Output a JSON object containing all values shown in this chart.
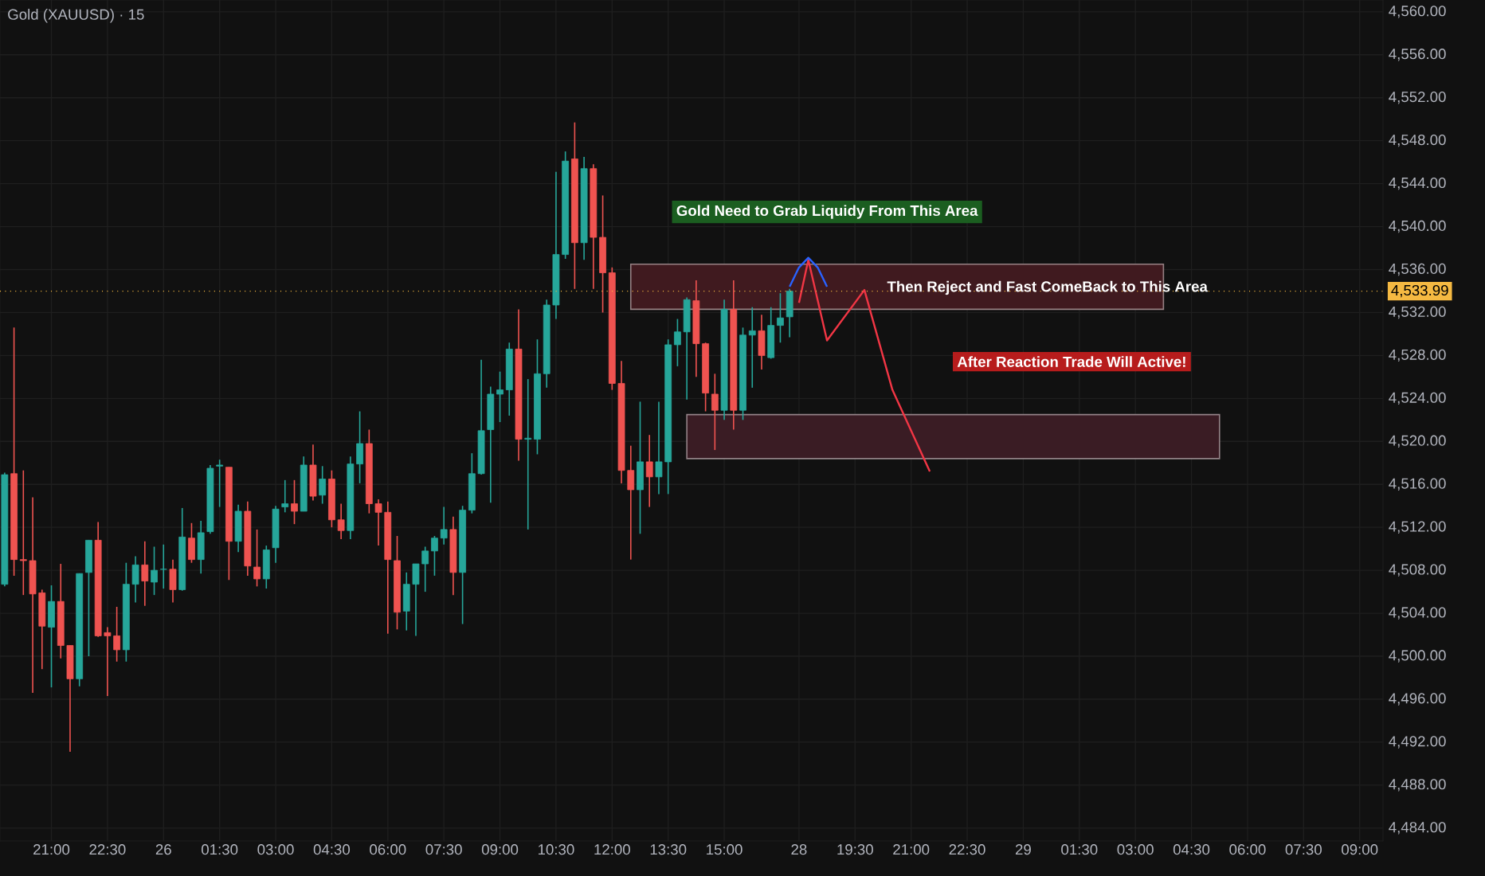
{
  "chart_data": {
    "type": "candlestick",
    "title": "Gold (XAUUSD) · 15",
    "categories": [
      null,
      null,
      null,
      null,
      null,
      "21:00",
      null,
      null,
      null,
      null,
      null,
      "22:30",
      null,
      null,
      null,
      null,
      null,
      "26",
      null,
      null,
      null,
      null,
      null,
      "01:30",
      null,
      null,
      null,
      null,
      null,
      "03:00",
      null,
      null,
      null,
      null,
      null,
      "04:30",
      null,
      null,
      null,
      null,
      null,
      "06:00",
      null,
      null,
      null,
      null,
      null,
      "07:30",
      null,
      null,
      null,
      null,
      null,
      "09:00",
      null,
      null,
      null,
      null,
      null,
      "10:30",
      null,
      null,
      null,
      null,
      null,
      "12:00",
      null,
      null,
      null,
      null,
      null,
      "13:30",
      null,
      null,
      null,
      null,
      null,
      "15:00",
      null,
      null,
      null,
      null,
      null,
      null,
      null,
      "28",
      null,
      null,
      null,
      null,
      null,
      "19:30",
      null,
      null,
      null,
      null,
      null,
      "21:00",
      null,
      null,
      null,
      null,
      null,
      "22:30",
      null,
      null,
      null,
      null,
      null,
      "29",
      null,
      null,
      null,
      null,
      null,
      "01:30",
      null,
      null,
      null,
      null,
      null,
      "03:00",
      null,
      null,
      null,
      null,
      null,
      "04:30",
      null,
      null,
      null,
      null,
      null,
      "06:00",
      null,
      null,
      null,
      null,
      null,
      "07:30",
      null,
      null,
      null,
      null,
      null,
      "09:00",
      null,
      null
    ],
    "ohlc": [
      [
        4506.7,
        4517.1,
        4506.5,
        4516.9
      ],
      [
        4517.0,
        4530.6,
        4507.5,
        4509.0
      ],
      [
        4509.0,
        4517.3,
        4505.7,
        4508.9
      ],
      [
        4508.9,
        4514.8,
        4496.6,
        4505.8
      ],
      [
        4505.9,
        4506.2,
        4498.8,
        4502.8
      ],
      [
        4502.7,
        4506.6,
        4497.1,
        4505.1
      ],
      [
        4505.1,
        4508.6,
        4499.8,
        4501.0
      ],
      [
        4501.0,
        4501.0,
        4491.1,
        4497.9
      ],
      [
        4497.9,
        4507.7,
        4497.2,
        4507.7
      ],
      [
        4507.8,
        4510.8,
        4500.0,
        4510.8
      ],
      [
        4510.8,
        4512.5,
        4501.8,
        4501.9
      ],
      [
        4502.2,
        4502.7,
        4496.3,
        4501.9
      ],
      [
        4501.9,
        4504.6,
        4499.5,
        4500.6
      ],
      [
        4500.6,
        4508.7,
        4499.5,
        4506.7
      ],
      [
        4506.7,
        4509.3,
        4505.0,
        4508.5
      ],
      [
        4508.5,
        4510.7,
        4504.7,
        4507.0
      ],
      [
        4506.9,
        4510.2,
        4505.7,
        4508.0
      ],
      [
        4508.1,
        4510.4,
        4506.3,
        4508.1
      ],
      [
        4508.1,
        4509.0,
        4505.0,
        4506.2
      ],
      [
        4506.2,
        4513.8,
        4506.1,
        4511.1
      ],
      [
        4511.0,
        4512.4,
        4508.7,
        4509.0
      ],
      [
        4509.0,
        4512.6,
        4507.7,
        4511.5
      ],
      [
        4511.6,
        4517.8,
        4511.4,
        4517.5
      ],
      [
        4517.7,
        4518.3,
        4513.9,
        4517.8
      ],
      [
        4517.6,
        4517.6,
        4507.1,
        4510.7
      ],
      [
        4510.7,
        4514.1,
        4509.7,
        4513.5
      ],
      [
        4513.5,
        4514.4,
        4507.5,
        4508.4
      ],
      [
        4508.3,
        4511.8,
        4506.5,
        4507.2
      ],
      [
        4507.2,
        4510.3,
        4506.3,
        4509.9
      ],
      [
        4510.1,
        4514.0,
        4508.7,
        4513.7
      ],
      [
        4513.9,
        4516.4,
        4513.4,
        4514.2
      ],
      [
        4514.2,
        4516.4,
        4512.3,
        4513.5
      ],
      [
        4513.5,
        4518.6,
        4513.5,
        4517.8
      ],
      [
        4517.8,
        4519.7,
        4514.5,
        4514.9
      ],
      [
        4515.0,
        4517.7,
        4514.2,
        4516.5
      ],
      [
        4516.5,
        4517.3,
        4512.0,
        4512.7
      ],
      [
        4512.7,
        4514.2,
        4510.9,
        4511.7
      ],
      [
        4511.7,
        4518.6,
        4510.9,
        4517.9
      ],
      [
        4517.9,
        4522.8,
        4516.1,
        4519.8
      ],
      [
        4519.8,
        4521.1,
        4513.3,
        4514.2
      ],
      [
        4514.2,
        4514.6,
        4510.3,
        4513.4
      ],
      [
        4513.4,
        4514.4,
        4502.1,
        4509.0
      ],
      [
        4508.9,
        4511.2,
        4502.5,
        4504.1
      ],
      [
        4504.2,
        4507.8,
        4502.4,
        4506.7
      ],
      [
        4506.7,
        4508.6,
        4501.9,
        4508.6
      ],
      [
        4508.6,
        4510.2,
        4506.0,
        4509.8
      ],
      [
        4509.8,
        4511.2,
        4507.5,
        4511.0
      ],
      [
        4511.0,
        4513.9,
        4510.4,
        4511.8
      ],
      [
        4511.8,
        4513.0,
        4505.7,
        4507.8
      ],
      [
        4507.8,
        4514.0,
        4503.0,
        4513.6
      ],
      [
        4513.6,
        4518.9,
        4513.3,
        4517.0
      ],
      [
        4517.0,
        4527.6,
        4516.9,
        4521.0
      ],
      [
        4521.1,
        4525.1,
        4514.3,
        4524.4
      ],
      [
        4524.4,
        4526.5,
        4521.8,
        4524.8
      ],
      [
        4524.8,
        4529.2,
        4522.4,
        4528.6
      ],
      [
        4528.6,
        4532.3,
        4518.2,
        4520.2
      ],
      [
        4520.2,
        4525.8,
        4511.8,
        4520.3
      ],
      [
        4520.2,
        4529.5,
        4518.8,
        4526.3
      ],
      [
        4526.3,
        4533.2,
        4525.0,
        4532.7
      ],
      [
        4532.7,
        4545.1,
        4531.4,
        4537.4
      ],
      [
        4537.4,
        4547.0,
        4537.0,
        4546.1
      ],
      [
        4546.3,
        4549.7,
        4534.2,
        4538.5
      ],
      [
        4538.5,
        4546.5,
        4536.9,
        4545.4
      ],
      [
        4545.4,
        4545.8,
        4534.2,
        4539.0
      ],
      [
        4539.0,
        4542.9,
        4532.0,
        4535.7
      ],
      [
        4535.7,
        4536.2,
        4524.8,
        4525.4
      ],
      [
        4525.4,
        4527.5,
        4516.1,
        4517.3
      ],
      [
        4517.3,
        4519.6,
        4509.0,
        4515.5
      ],
      [
        4515.5,
        4523.7,
        4511.4,
        4518.1
      ],
      [
        4518.1,
        4520.6,
        4513.9,
        4516.7
      ],
      [
        4516.7,
        4523.7,
        4515.1,
        4518.1
      ],
      [
        4518.1,
        4529.5,
        4515.1,
        4529.0
      ],
      [
        4529.0,
        4531.4,
        4527.0,
        4530.2
      ],
      [
        4530.2,
        4533.4,
        4523.9,
        4533.2
      ],
      [
        4533.1,
        4535.0,
        4526.0,
        4529.1
      ],
      [
        4529.1,
        4529.2,
        4522.8,
        4524.5
      ],
      [
        4524.4,
        4526.3,
        4519.2,
        4522.9
      ],
      [
        4522.9,
        4533.2,
        4522.0,
        4532.3
      ],
      [
        4532.3,
        4535.0,
        4521.1,
        4522.9
      ],
      [
        4522.9,
        4530.6,
        4522.0,
        4529.9
      ],
      [
        4529.9,
        4532.5,
        4525.0,
        4530.3
      ],
      [
        4530.3,
        4531.8,
        4526.7,
        4528.0
      ],
      [
        4527.8,
        4532.5,
        4527.7,
        4530.8
      ],
      [
        4530.8,
        4533.8,
        4529.2,
        4531.5
      ],
      [
        4531.6,
        4534.2,
        4529.7,
        4533.99
      ],
      null,
      null,
      null,
      null,
      null,
      null,
      null,
      null,
      null,
      null,
      null,
      null,
      null,
      null,
      null,
      null,
      null,
      null,
      null,
      null,
      null,
      null,
      null,
      null,
      null,
      null,
      null,
      null,
      null,
      null,
      null,
      null,
      null,
      null,
      null,
      null,
      null,
      null,
      null,
      null,
      null,
      null,
      null,
      null,
      null,
      null,
      null,
      null,
      null,
      null,
      null,
      null,
      null,
      null,
      null,
      null,
      null,
      null,
      null,
      null,
      null,
      null,
      null
    ],
    "series": [
      {
        "type": "area",
        "color": "#401a1f",
        "values": [
          null,
          null,
          null,
          null,
          null,
          null,
          null,
          null,
          null,
          null,
          null,
          null,
          null,
          null,
          null,
          null,
          null,
          null,
          null,
          null,
          null,
          null,
          null,
          null,
          null,
          null,
          null,
          null,
          null,
          null,
          null,
          null,
          null,
          null,
          null,
          null,
          null,
          null,
          null,
          null,
          null,
          null,
          null,
          null,
          null,
          null,
          null,
          null,
          null,
          null,
          null,
          null,
          null,
          null,
          null,
          null,
          null,
          null,
          null,
          null,
          null,
          null,
          null,
          null,
          null,
          null,
          null,
          null,
          null,
          null,
          null,
          null,
          null,
          null,
          null,
          null,
          null,
          null,
          null,
          null,
          null,
          null,
          null,
          null,
          null,
          null,
          null,
          null,
          null,
          null,
          null,
          null,
          null,
          null,
          null,
          null,
          null,
          null,
          null,
          null,
          null,
          null,
          null,
          null,
          null,
          null,
          null,
          null,
          null,
          null,
          null,
          null,
          null,
          null,
          null,
          null,
          null,
          null,
          null,
          null,
          null,
          null,
          null,
          null,
          null,
          null,
          null,
          null,
          null,
          null,
          null,
          null,
          null,
          null,
          null,
          null,
          null,
          null,
          null,
          null,
          null,
          null,
          null,
          null,
          null,
          null,
          null,
          null
        ],
        "upper": [
          null,
          null,
          null,
          null,
          null,
          null,
          null,
          null,
          null,
          null,
          null,
          null,
          null,
          null,
          null,
          null,
          null,
          null,
          null,
          null,
          null,
          null,
          null,
          null,
          null,
          null,
          null,
          null,
          null,
          null,
          null,
          null,
          null,
          null,
          null,
          null,
          null,
          null,
          null,
          null,
          null,
          null,
          null,
          null,
          null,
          null,
          null,
          null,
          null,
          null,
          null,
          null,
          null,
          null,
          null,
          null,
          null,
          null,
          null,
          null,
          null,
          null,
          null,
          null,
          null,
          null,
          null,
          4536.5,
          4536.5,
          4536.5,
          4536.5,
          4536.5,
          4536.5,
          4536.5,
          4536.5,
          4536.5,
          4536.5,
          4536.5,
          4536.5,
          4536.5,
          4536.5,
          4536.5,
          4536.5,
          4536.5,
          4536.5,
          4536.5,
          4536.5,
          4536.5,
          4536.5,
          4536.5,
          4536.5,
          4536.5,
          4536.5,
          4536.5,
          4536.5,
          4536.5,
          4536.5,
          4536.5,
          4536.5,
          4536.5,
          4536.5,
          4536.5,
          4536.5,
          4536.5,
          4536.5,
          4536.5,
          4536.5,
          4536.5,
          4536.5,
          4536.5,
          4536.5,
          4536.5,
          4536.5,
          4536.5,
          4536.5,
          4536.5,
          4536.5,
          4536.5,
          4536.5,
          4536.5,
          4536.5,
          4536.5,
          4536.5,
          4536.5,
          4536.5,
          null,
          null,
          null,
          null,
          null,
          null,
          null,
          null,
          null,
          null,
          null,
          null,
          null,
          null,
          null,
          null,
          null,
          null,
          null,
          null,
          null,
          null,
          null
        ],
        "lower": [
          null,
          null,
          null,
          null,
          null,
          null,
          null,
          null,
          null,
          null,
          null,
          null,
          null,
          null,
          null,
          null,
          null,
          null,
          null,
          null,
          null,
          null,
          null,
          null,
          null,
          null,
          null,
          null,
          null,
          null,
          null,
          null,
          null,
          null,
          null,
          null,
          null,
          null,
          null,
          null,
          null,
          null,
          null,
          null,
          null,
          null,
          null,
          null,
          null,
          null,
          null,
          null,
          null,
          null,
          null,
          null,
          null,
          null,
          null,
          null,
          null,
          null,
          null,
          null,
          null,
          null,
          null,
          4532.3,
          4532.3,
          4532.3,
          4532.3,
          4532.3,
          4532.3,
          4532.3,
          4532.3,
          4532.3,
          4532.3,
          4532.3,
          4532.3,
          4532.3,
          4532.3,
          4532.3,
          4532.3,
          4532.3,
          4532.3,
          4532.3,
          4532.3,
          4532.3,
          4532.3,
          4532.3,
          4532.3,
          4532.3,
          4532.3,
          4532.3,
          4532.3,
          4532.3,
          4532.3,
          4532.3,
          4532.3,
          4532.3,
          4532.3,
          4532.3,
          4532.3,
          4532.3,
          4532.3,
          4532.3,
          4532.3,
          4532.3,
          4532.3,
          4532.3,
          4532.3,
          4532.3,
          4532.3,
          4532.3,
          4532.3,
          4532.3,
          4532.3,
          4532.3,
          4532.3,
          4532.3,
          4532.3,
          4532.3,
          4532.3,
          4532.3,
          4532.3,
          null,
          null,
          null,
          null,
          null,
          null,
          null,
          null,
          null,
          null,
          null,
          null,
          null,
          null,
          null,
          null,
          null,
          null,
          null,
          null,
          null,
          null,
          null
        ]
      },
      {
        "type": "area",
        "color": "#3a1c24",
        "values": [
          null,
          null,
          null,
          null,
          null,
          null,
          null,
          null,
          null,
          null,
          null,
          null,
          null,
          null,
          null,
          null,
          null,
          null,
          null,
          null,
          null,
          null,
          null,
          null,
          null,
          null,
          null,
          null,
          null,
          null,
          null,
          null,
          null,
          null,
          null,
          null,
          null,
          null,
          null,
          null,
          null,
          null,
          null,
          null,
          null,
          null,
          null,
          null,
          null,
          null,
          null,
          null,
          null,
          null,
          null,
          null,
          null,
          null,
          null,
          null,
          null,
          null,
          null,
          null,
          null,
          null,
          null,
          null,
          null,
          null,
          null,
          null,
          null,
          null,
          null,
          null,
          null,
          null,
          null,
          null,
          null,
          null,
          null,
          null,
          null,
          null,
          null,
          null,
          null,
          null,
          null,
          null,
          null,
          null,
          null,
          null,
          null,
          null,
          null,
          null,
          null,
          null,
          null,
          null,
          null,
          null,
          null,
          null,
          null,
          null,
          null,
          null,
          null,
          null,
          null,
          null,
          null,
          null,
          null,
          null,
          null,
          null,
          null,
          null,
          null,
          null,
          null,
          null,
          null,
          null,
          null,
          null,
          null,
          null,
          null,
          null,
          null,
          null,
          null,
          null,
          null,
          null,
          null,
          null,
          null,
          null,
          null,
          null
        ],
        "upper": [
          null,
          null,
          null,
          null,
          null,
          null,
          null,
          null,
          null,
          null,
          null,
          null,
          null,
          null,
          null,
          null,
          null,
          null,
          null,
          null,
          null,
          null,
          null,
          null,
          null,
          null,
          null,
          null,
          null,
          null,
          null,
          null,
          null,
          null,
          null,
          null,
          null,
          null,
          null,
          null,
          null,
          null,
          null,
          null,
          null,
          null,
          null,
          null,
          null,
          null,
          null,
          null,
          null,
          null,
          null,
          null,
          null,
          null,
          null,
          null,
          null,
          null,
          null,
          null,
          null,
          null,
          null,
          null,
          null,
          null,
          null,
          null,
          null,
          4522.5,
          4522.5,
          4522.5,
          4522.5,
          4522.5,
          4522.5,
          4522.5,
          4522.5,
          4522.5,
          4522.5,
          4522.5,
          4522.5,
          4522.5,
          4522.5,
          4522.5,
          4522.5,
          4522.5,
          4522.5,
          4522.5,
          4522.5,
          4522.5,
          4522.5,
          4522.5,
          4522.5,
          4522.5,
          4522.5,
          4522.5,
          4522.5,
          4522.5,
          4522.5,
          4522.5,
          4522.5,
          4522.5,
          4522.5,
          4522.5,
          4522.5,
          4522.5,
          4522.5,
          4522.5,
          4522.5,
          4522.5,
          4522.5,
          4522.5,
          4522.5,
          4522.5,
          4522.5,
          4522.5,
          4522.5,
          4522.5,
          4522.5,
          4522.5,
          4522.5,
          4522.5,
          4522.5,
          4522.5,
          4522.5,
          4522.5,
          4522.5,
          null,
          null,
          null,
          null,
          null,
          null,
          null,
          null,
          null,
          null,
          null,
          null,
          null,
          null,
          null,
          null,
          null
        ],
        "lower": [
          null,
          null,
          null,
          null,
          null,
          null,
          null,
          null,
          null,
          null,
          null,
          null,
          null,
          null,
          null,
          null,
          null,
          null,
          null,
          null,
          null,
          null,
          null,
          null,
          null,
          null,
          null,
          null,
          null,
          null,
          null,
          null,
          null,
          null,
          null,
          null,
          null,
          null,
          null,
          null,
          null,
          null,
          null,
          null,
          null,
          null,
          null,
          null,
          null,
          null,
          null,
          null,
          null,
          null,
          null,
          null,
          null,
          null,
          null,
          null,
          null,
          null,
          null,
          null,
          null,
          null,
          null,
          null,
          null,
          null,
          null,
          null,
          null,
          4518.4,
          4518.4,
          4518.4,
          4518.4,
          4518.4,
          4518.4,
          4518.4,
          4518.4,
          4518.4,
          4518.4,
          4518.4,
          4518.4,
          4518.4,
          4518.4,
          4518.4,
          4518.4,
          4518.4,
          4518.4,
          4518.4,
          4518.4,
          4518.4,
          4518.4,
          4518.4,
          4518.4,
          4518.4,
          4518.4,
          4518.4,
          4518.4,
          4518.4,
          4518.4,
          4518.4,
          4518.4,
          4518.4,
          4518.4,
          4518.4,
          4518.4,
          4518.4,
          4518.4,
          4518.4,
          4518.4,
          4518.4,
          4518.4,
          4518.4,
          4518.4,
          4518.4,
          4518.4,
          4518.4,
          4518.4,
          4518.4,
          4518.4,
          4518.4,
          4518.4,
          4518.4,
          4518.4,
          4518.4,
          4518.4,
          4518.4,
          4518.4,
          null,
          null,
          null,
          null,
          null,
          null,
          null,
          null,
          null,
          null,
          null,
          null,
          null,
          null,
          null,
          null,
          null
        ]
      },
      {
        "type": "line",
        "color": "#f23645",
        "values": [
          null,
          null,
          null,
          null,
          null,
          null,
          null,
          null,
          null,
          null,
          null,
          null,
          null,
          null,
          null,
          null,
          null,
          null,
          null,
          null,
          null,
          null,
          null,
          null,
          null,
          null,
          null,
          null,
          null,
          null,
          null,
          null,
          null,
          null,
          null,
          null,
          null,
          null,
          null,
          null,
          null,
          null,
          null,
          null,
          null,
          null,
          null,
          null,
          null,
          null,
          null,
          null,
          null,
          null,
          null,
          null,
          null,
          null,
          null,
          null,
          null,
          null,
          null,
          null,
          null,
          null,
          null,
          null,
          null,
          null,
          null,
          null,
          null,
          null,
          null,
          null,
          null,
          null,
          null,
          null,
          null,
          null,
          null,
          null,
          null,
          4532.9,
          4536.9,
          null,
          4529.4,
          null,
          null,
          null,
          4534.1,
          null,
          null,
          4524.8,
          null,
          null,
          null,
          4517.2,
          null,
          null,
          null,
          null,
          null,
          null,
          null,
          null,
          null,
          null,
          null,
          null,
          null,
          null,
          null,
          null,
          null,
          null,
          null,
          null,
          null,
          null,
          null,
          null,
          null,
          null,
          null,
          null,
          null,
          null,
          null,
          null,
          null,
          null,
          null,
          null,
          null,
          null,
          null,
          null,
          null,
          null,
          null,
          null,
          null,
          null,
          null,
          null
        ]
      },
      {
        "type": "line",
        "color": "#2962ff",
        "values": [
          null,
          null,
          null,
          null,
          null,
          null,
          null,
          null,
          null,
          null,
          null,
          null,
          null,
          null,
          null,
          null,
          null,
          null,
          null,
          null,
          null,
          null,
          null,
          null,
          null,
          null,
          null,
          null,
          null,
          null,
          null,
          null,
          null,
          null,
          null,
          null,
          null,
          null,
          null,
          null,
          null,
          null,
          null,
          null,
          null,
          null,
          null,
          null,
          null,
          null,
          null,
          null,
          null,
          null,
          null,
          null,
          null,
          null,
          null,
          null,
          null,
          null,
          null,
          null,
          null,
          null,
          null,
          null,
          null,
          null,
          null,
          null,
          null,
          null,
          null,
          null,
          null,
          null,
          null,
          null,
          null,
          null,
          null,
          null,
          4534.4,
          4536.2,
          4537.1,
          4536.2,
          4534.4,
          null,
          null,
          null,
          null,
          null,
          null,
          null,
          null,
          null,
          null,
          null,
          null,
          null,
          null,
          null,
          null,
          null,
          null,
          null,
          null,
          null,
          null,
          null,
          null,
          null,
          null,
          null,
          null,
          null,
          null,
          null,
          null,
          null,
          null,
          null,
          null,
          null,
          null,
          null,
          null,
          null,
          null,
          null,
          null,
          null,
          null,
          null,
          null,
          null,
          null,
          null,
          null,
          null,
          null,
          null,
          null,
          null,
          null,
          null
        ]
      }
    ],
    "annotations": [
      "Gold Need to Grab Liquidy From This Area",
      {
        "text": "Then Reject and Fast ComeBack to This Area",
        "y": 4534.3
      },
      "After Reaction Trade Will Active!"
    ],
    "ref_lines": [
      {
        "axis": "y",
        "value": 4533.99,
        "label": "4,533.99",
        "color": "#f5b942",
        "line_style": "dotted"
      }
    ],
    "ylim": [
      4482.8,
      4561.1
    ],
    "yticks": [
      {
        "value": 4484,
        "label": "4,484.00"
      },
      {
        "value": 4488,
        "label": "4,488.00"
      },
      {
        "value": 4492,
        "label": "4,492.00"
      },
      {
        "value": 4496,
        "label": "4,496.00"
      },
      {
        "value": 4500,
        "label": "4,500.00"
      },
      {
        "value": 4504,
        "label": "4,504.00"
      },
      {
        "value": 4508,
        "label": "4,508.00"
      },
      {
        "value": 4512,
        "label": "4,512.00"
      },
      {
        "value": 4516,
        "label": "4,516.00"
      },
      {
        "value": 4520,
        "label": "4,520.00"
      },
      {
        "value": 4524,
        "label": "4,524.00"
      },
      {
        "value": 4528,
        "label": "4,528.00"
      },
      {
        "value": 4532,
        "label": "4,532.00"
      },
      {
        "value": 4536,
        "label": "4,536.00"
      },
      {
        "value": 4540,
        "label": "4,540.00"
      },
      {
        "value": 4544,
        "label": "4,544.00"
      },
      {
        "value": 4548,
        "label": "4,548.00"
      },
      {
        "value": 4552,
        "label": "4,552.00"
      },
      {
        "value": 4556,
        "label": "4,556.00"
      },
      {
        "value": 4560,
        "label": "4,560.00"
      }
    ],
    "grid": true,
    "line_style": "solid"
  }
}
